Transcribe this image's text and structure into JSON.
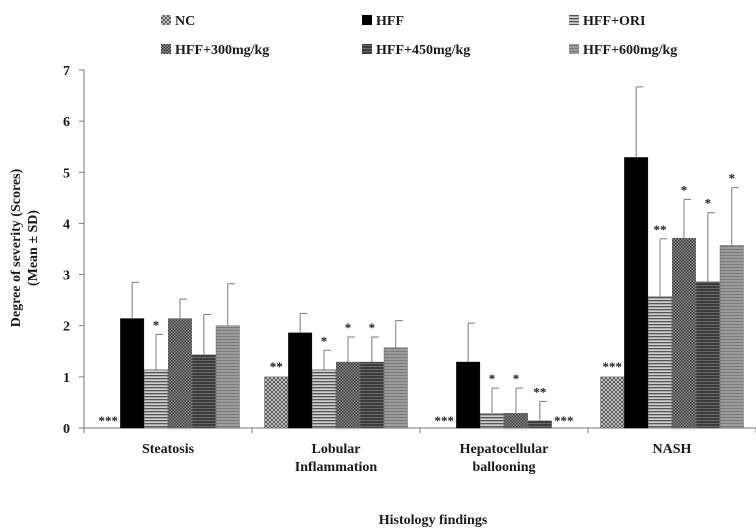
{
  "chart_data": {
    "type": "bar",
    "title": "",
    "xlabel": "Histology findings",
    "ylabel_line1": "Degree of severity (Scores)",
    "ylabel_line2": "(Mean ± SD)",
    "ylim": [
      0,
      7
    ],
    "yticks": [
      "0",
      "1",
      "2",
      "3",
      "4",
      "5",
      "6",
      "7"
    ],
    "grid": false,
    "legend_position": "top",
    "groups": [
      {
        "label_lines": [
          "Steatosis"
        ]
      },
      {
        "label_lines": [
          "Lobular",
          "Inflammation"
        ]
      },
      {
        "label_lines": [
          "Hepatocellular",
          "ballooning"
        ]
      },
      {
        "label_lines": [
          "NASH"
        ]
      }
    ],
    "series": [
      {
        "name": "NC",
        "style": "crosshatch",
        "color": "#9a9a9a",
        "values": [
          0,
          1.0,
          0,
          1.0
        ],
        "sd": [
          0,
          0,
          0,
          0
        ],
        "significance": [
          "***",
          "**",
          "***",
          "***"
        ]
      },
      {
        "name": "HFF",
        "style": "solid",
        "color": "#000000",
        "values": [
          2.14,
          1.86,
          1.29,
          5.29
        ],
        "sd": [
          0.71,
          0.38,
          0.76,
          1.38
        ],
        "significance": [
          "",
          "",
          "",
          ""
        ]
      },
      {
        "name": "HFF+ORI",
        "style": "hlines",
        "color": "#8a8a8a",
        "values": [
          1.14,
          1.14,
          0.29,
          2.57
        ],
        "sd": [
          0.69,
          0.38,
          0.49,
          1.13
        ],
        "significance": [
          "*",
          "*",
          "*",
          "**"
        ]
      },
      {
        "name": "HFF+300mg/kg",
        "style": "fine",
        "color": "#707070",
        "values": [
          2.14,
          1.29,
          0.29,
          3.71
        ],
        "sd": [
          0.38,
          0.49,
          0.49,
          0.76
        ],
        "significance": [
          "",
          "*",
          "*",
          "*"
        ]
      },
      {
        "name": "HFF+450mg/kg",
        "style": "dark",
        "color": "#555555",
        "values": [
          1.43,
          1.29,
          0.14,
          2.86
        ],
        "sd": [
          0.79,
          0.49,
          0.38,
          1.35
        ],
        "significance": [
          "",
          "*",
          "**",
          "*"
        ]
      },
      {
        "name": "HFF+600mg/kg",
        "style": "light",
        "color": "#8c8c8c",
        "values": [
          2.0,
          1.57,
          0,
          3.57
        ],
        "sd": [
          0.82,
          0.53,
          0,
          1.13
        ],
        "significance": [
          "",
          "",
          "***",
          "*"
        ]
      }
    ]
  }
}
